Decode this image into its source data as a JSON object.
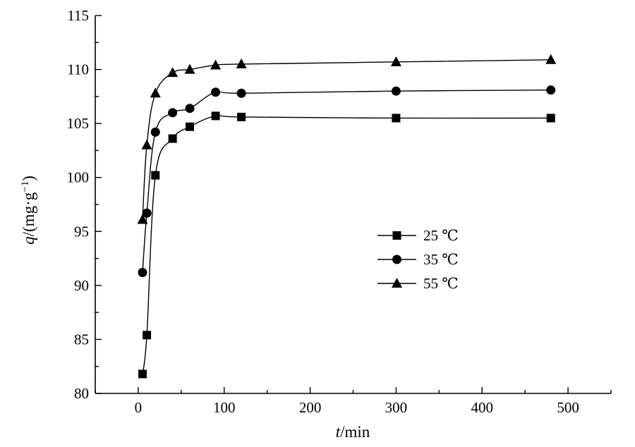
{
  "chart_data": {
    "type": "line",
    "xlabel_italic": "t",
    "xlabel_rest": "/min",
    "ylabel_italic": "q",
    "ylabel_rest": "/(mg·g",
    "ylabel_sup": "−1",
    "ylabel_close": ")",
    "xlim": [
      -50,
      550
    ],
    "ylim": [
      80,
      115
    ],
    "xticks": [
      0,
      100,
      200,
      300,
      400,
      500
    ],
    "yticks": [
      80,
      85,
      90,
      95,
      100,
      105,
      110,
      115
    ],
    "legend_position": "center-right",
    "series": [
      {
        "name": "25 ℃",
        "marker": "square",
        "x": [
          5,
          10,
          20,
          40,
          60,
          90,
          120,
          300,
          480
        ],
        "y": [
          81.8,
          85.4,
          100.2,
          103.6,
          104.7,
          105.7,
          105.6,
          105.5,
          105.5
        ]
      },
      {
        "name": "35 ℃",
        "marker": "circle",
        "x": [
          5,
          10,
          20,
          40,
          60,
          90,
          120,
          300,
          480
        ],
        "y": [
          91.2,
          96.7,
          104.2,
          106.0,
          106.4,
          107.9,
          107.8,
          108.0,
          108.1
        ]
      },
      {
        "name": "55 ℃",
        "marker": "triangle",
        "x": [
          5,
          10,
          20,
          40,
          60,
          90,
          120,
          300,
          480
        ],
        "y": [
          96.1,
          103.0,
          107.8,
          109.7,
          110.0,
          110.4,
          110.5,
          110.7,
          110.9
        ]
      }
    ]
  }
}
